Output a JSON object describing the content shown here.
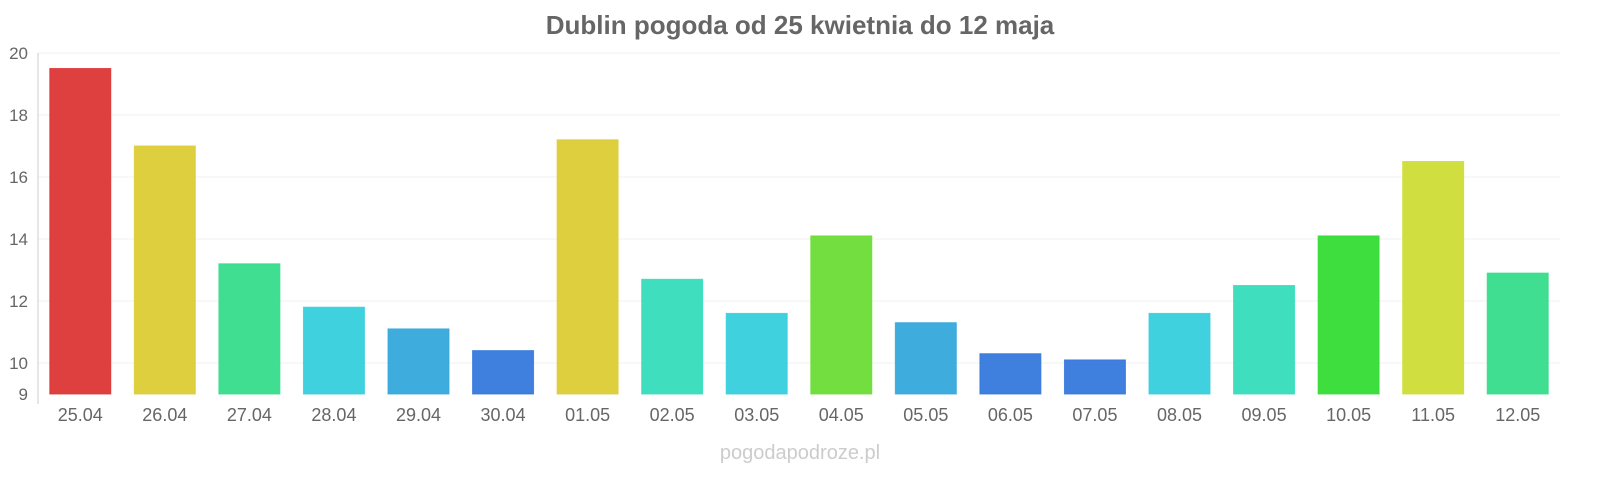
{
  "chart_data": {
    "type": "bar",
    "title": "Dublin pogoda od 25 kwietnia do 12 maja",
    "xlabel": "",
    "ylabel": "",
    "ylim": [
      9,
      20
    ],
    "yticks": [
      9,
      10,
      12,
      14,
      16,
      18,
      20
    ],
    "grid": true,
    "categories": [
      "25.04",
      "26.04",
      "27.04",
      "28.04",
      "29.04",
      "30.04",
      "01.05",
      "02.05",
      "03.05",
      "04.05",
      "05.05",
      "06.05",
      "07.05",
      "08.05",
      "09.05",
      "10.05",
      "11.05",
      "12.05"
    ],
    "values": [
      19.5,
      17.0,
      13.2,
      11.8,
      11.1,
      10.4,
      17.2,
      12.7,
      11.6,
      14.1,
      11.3,
      10.3,
      10.1,
      11.6,
      12.5,
      14.1,
      16.5,
      12.9
    ],
    "colors": [
      "#dc3535",
      "#dccc35",
      "#35dc8a",
      "#35cfdc",
      "#35a8dc",
      "#3578dc",
      "#dccc35",
      "#35dcbc",
      "#35cfdc",
      "#6adc35",
      "#35a8dc",
      "#3578dc",
      "#3578dc",
      "#35cfdc",
      "#35dcbc",
      "#35dc35",
      "#cfdc35",
      "#35dc8a"
    ]
  },
  "credit": "pogodapodroze.pl"
}
